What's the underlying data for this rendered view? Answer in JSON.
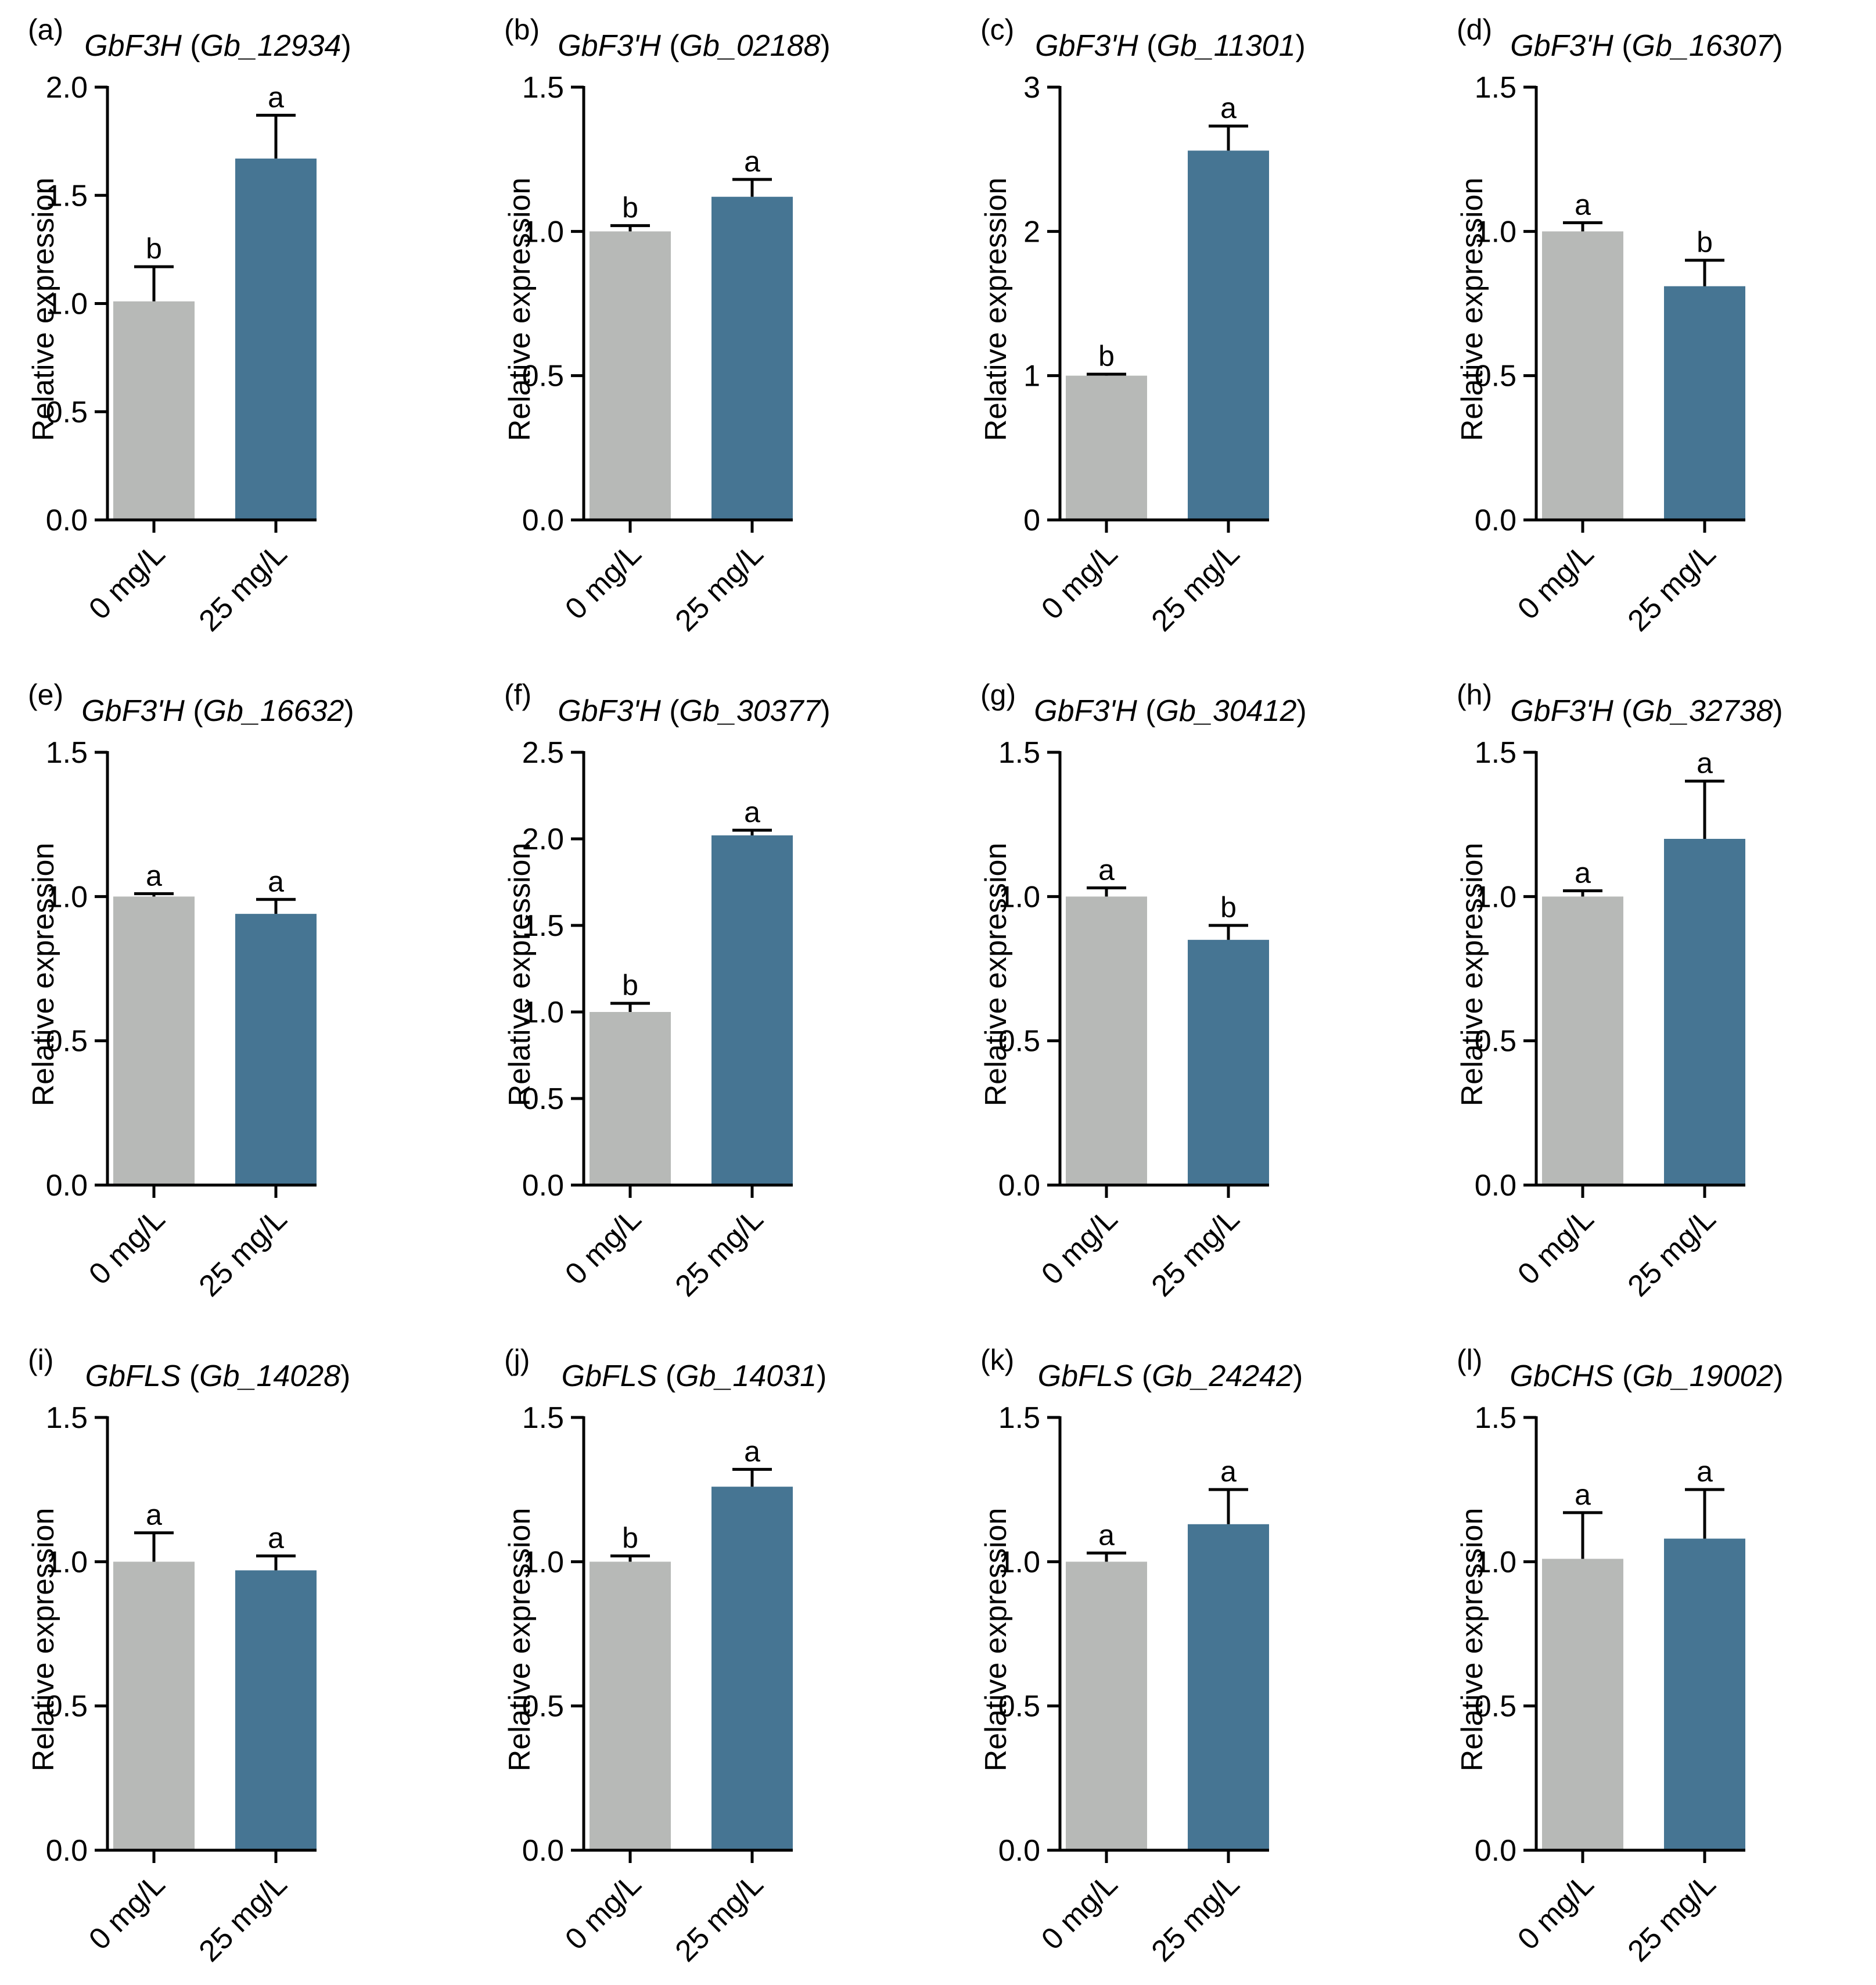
{
  "figure": {
    "colors": {
      "control": "#b7b9b7",
      "treated": "#467593",
      "axis": "#000000"
    },
    "categories": [
      "0 mg/L",
      "25 mg/L"
    ],
    "y_axis_label": "Relative expression"
  },
  "chart_data": [
    {
      "type": "bar",
      "panel": "(a)",
      "title_gene": "GbF3H",
      "title_id": "Gb_12934",
      "ylabel": "Relative expression",
      "categories": [
        "0 mg/L",
        "25 mg/L"
      ],
      "values": [
        1.01,
        1.67
      ],
      "errors": [
        0.16,
        0.2
      ],
      "letters": [
        "b",
        "a"
      ],
      "ylim": [
        0,
        2.0
      ],
      "yticks": [
        "0.0",
        "0.5",
        "1.0",
        "1.5",
        "2.0"
      ]
    },
    {
      "type": "bar",
      "panel": "(b)",
      "title_gene": "GbF3'H",
      "title_id": "Gb_02188",
      "ylabel": "Relative expression",
      "categories": [
        "0 mg/L",
        "25 mg/L"
      ],
      "values": [
        1.0,
        1.12
      ],
      "errors": [
        0.02,
        0.06
      ],
      "letters": [
        "b",
        "a"
      ],
      "ylim": [
        0,
        1.5
      ],
      "yticks": [
        "0.0",
        "0.5",
        "1.0",
        "1.5"
      ]
    },
    {
      "type": "bar",
      "panel": "(c)",
      "title_gene": "GbF3'H",
      "title_id": "Gb_11301",
      "ylabel": "Relative expression",
      "categories": [
        "0 mg/L",
        "25 mg/L"
      ],
      "values": [
        1.0,
        2.56
      ],
      "errors": [
        0.01,
        0.17
      ],
      "letters": [
        "b",
        "a"
      ],
      "ylim": [
        0,
        3
      ],
      "yticks": [
        "0",
        "1",
        "2",
        "3"
      ]
    },
    {
      "type": "bar",
      "panel": "(d)",
      "title_gene": "GbF3'H",
      "title_id": "Gb_16307",
      "ylabel": "Relative expression",
      "categories": [
        "0 mg/L",
        "25 mg/L"
      ],
      "values": [
        1.0,
        0.81
      ],
      "errors": [
        0.03,
        0.09
      ],
      "letters": [
        "a",
        "b"
      ],
      "ylim": [
        0,
        1.5
      ],
      "yticks": [
        "0.0",
        "0.5",
        "1.0",
        "1.5"
      ]
    },
    {
      "type": "bar",
      "panel": "(e)",
      "title_gene": "GbF3'H",
      "title_id": "Gb_16632",
      "ylabel": "Relative expression",
      "categories": [
        "0 mg/L",
        "25 mg/L"
      ],
      "values": [
        1.0,
        0.94
      ],
      "errors": [
        0.01,
        0.05
      ],
      "letters": [
        "a",
        "a"
      ],
      "ylim": [
        0,
        1.5
      ],
      "yticks": [
        "0.0",
        "0.5",
        "1.0",
        "1.5"
      ]
    },
    {
      "type": "bar",
      "panel": "(f)",
      "title_gene": "GbF3'H",
      "title_id": "Gb_30377",
      "ylabel": "Relative expression",
      "categories": [
        "0 mg/L",
        "25 mg/L"
      ],
      "values": [
        1.0,
        2.02
      ],
      "errors": [
        0.05,
        0.03
      ],
      "letters": [
        "b",
        "a"
      ],
      "ylim": [
        0,
        2.5
      ],
      "yticks": [
        "0.0",
        "0.5",
        "1.0",
        "1.5",
        "2.0",
        "2.5"
      ]
    },
    {
      "type": "bar",
      "panel": "(g)",
      "title_gene": "GbF3'H",
      "title_id": "Gb_30412",
      "ylabel": "Relative expression",
      "categories": [
        "0 mg/L",
        "25 mg/L"
      ],
      "values": [
        1.0,
        0.85
      ],
      "errors": [
        0.03,
        0.05
      ],
      "letters": [
        "a",
        "b"
      ],
      "ylim": [
        0,
        1.5
      ],
      "yticks": [
        "0.0",
        "0.5",
        "1.0",
        "1.5"
      ]
    },
    {
      "type": "bar",
      "panel": "(h)",
      "title_gene": "GbF3'H",
      "title_id": "Gb_32738",
      "ylabel": "Relative expression",
      "categories": [
        "0 mg/L",
        "25 mg/L"
      ],
      "values": [
        1.0,
        1.2
      ],
      "errors": [
        0.02,
        0.2
      ],
      "letters": [
        "a",
        "a"
      ],
      "ylim": [
        0,
        1.5
      ],
      "yticks": [
        "0.0",
        "0.5",
        "1.0",
        "1.5"
      ]
    },
    {
      "type": "bar",
      "panel": "(i)",
      "title_gene": "GbFLS",
      "title_id": "Gb_14028",
      "ylabel": "Relative expression",
      "categories": [
        "0 mg/L",
        "25 mg/L"
      ],
      "values": [
        1.0,
        0.97
      ],
      "errors": [
        0.1,
        0.05
      ],
      "letters": [
        "a",
        "a"
      ],
      "ylim": [
        0,
        1.5
      ],
      "yticks": [
        "0.0",
        "0.5",
        "1.0",
        "1.5"
      ]
    },
    {
      "type": "bar",
      "panel": "(j)",
      "title_gene": "GbFLS",
      "title_id": "Gb_14031",
      "ylabel": "Relative expression",
      "categories": [
        "0 mg/L",
        "25 mg/L"
      ],
      "values": [
        1.0,
        1.26
      ],
      "errors": [
        0.02,
        0.06
      ],
      "letters": [
        "b",
        "a"
      ],
      "ylim": [
        0,
        1.5
      ],
      "yticks": [
        "0.0",
        "0.5",
        "1.0",
        "1.5"
      ]
    },
    {
      "type": "bar",
      "panel": "(k)",
      "title_gene": "GbFLS",
      "title_id": "Gb_24242",
      "ylabel": "Relative expression",
      "categories": [
        "0 mg/L",
        "25 mg/L"
      ],
      "values": [
        1.0,
        1.13
      ],
      "errors": [
        0.03,
        0.12
      ],
      "letters": [
        "a",
        "a"
      ],
      "ylim": [
        0,
        1.5
      ],
      "yticks": [
        "0.0",
        "0.5",
        "1.0",
        "1.5"
      ]
    },
    {
      "type": "bar",
      "panel": "(l)",
      "title_gene": "GbCHS",
      "title_id": "Gb_19002",
      "ylabel": "Relative expression",
      "categories": [
        "0 mg/L",
        "25 mg/L"
      ],
      "values": [
        1.01,
        1.08
      ],
      "errors": [
        0.16,
        0.17
      ],
      "letters": [
        "a",
        "a"
      ],
      "ylim": [
        0,
        1.5
      ],
      "yticks": [
        "0.0",
        "0.5",
        "1.0",
        "1.5"
      ]
    }
  ]
}
